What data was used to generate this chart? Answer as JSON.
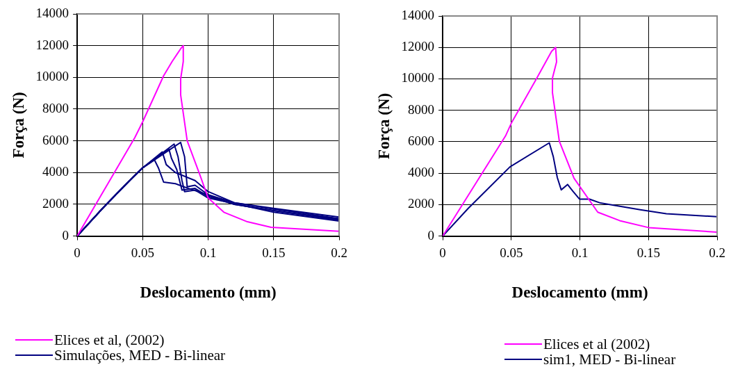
{
  "chart_data": [
    {
      "type": "line",
      "xlabel": "Deslocamento (mm)",
      "ylabel": "Força (N)",
      "xlim": [
        0,
        0.2
      ],
      "xticks": [
        0,
        0.05,
        0.1,
        0.15,
        0.2
      ],
      "ylim": [
        0,
        14000
      ],
      "yticks": [
        0,
        2000,
        4000,
        6000,
        8000,
        10000,
        12000,
        14000
      ],
      "grid": true,
      "legend": "bottom",
      "marker": "none",
      "line_style": "solid",
      "series": [
        {
          "name": "Elices et al, (2002)",
          "color": "#ff00ff",
          "x": [
            0,
            0.044,
            0.05,
            0.066,
            0.0725,
            0.079,
            0.081,
            0.081,
            0.079,
            0.079,
            0.084,
            0.0935,
            0.1,
            0.112,
            0.13,
            0.148,
            0.2
          ],
          "values": [
            0,
            6200,
            7200,
            10100,
            11000,
            11800,
            12000,
            11000,
            9900,
            8900,
            6000,
            3900,
            2400,
            1500,
            900,
            550,
            300
          ]
        },
        {
          "name": "Simulações, MED - Bi-linear",
          "color": "#000080",
          "x": [
            0,
            0.02,
            0.04,
            0.05,
            0.059,
            0.062,
            0.066,
            0.075,
            0.085,
            0.1,
            0.12,
            0.15,
            0.2
          ],
          "values": [
            0,
            1800,
            3500,
            4300,
            4800,
            4300,
            3400,
            3300,
            3000,
            2600,
            2100,
            1750,
            1200
          ]
        },
        {
          "color": "#000080",
          "x": [
            0,
            0.02,
            0.04,
            0.05,
            0.065,
            0.068,
            0.075,
            0.09,
            0.1,
            0.12,
            0.15,
            0.2
          ],
          "values": [
            0,
            1800,
            3500,
            4300,
            5300,
            4500,
            4000,
            3500,
            2800,
            2100,
            1700,
            1100
          ]
        },
        {
          "color": "#000080",
          "x": [
            0,
            0.02,
            0.04,
            0.05,
            0.07,
            0.072,
            0.076,
            0.08,
            0.09,
            0.1,
            0.12,
            0.15,
            0.2
          ],
          "values": [
            0,
            1800,
            3500,
            4300,
            5500,
            4900,
            4200,
            2900,
            3000,
            2500,
            2000,
            1600,
            1000
          ]
        },
        {
          "color": "#000080",
          "x": [
            0,
            0.02,
            0.04,
            0.05,
            0.074,
            0.077,
            0.08,
            0.082,
            0.09,
            0.1,
            0.15,
            0.2
          ],
          "values": [
            0,
            1800,
            3500,
            4300,
            5800,
            5000,
            3500,
            2800,
            2900,
            2400,
            1500,
            950
          ]
        },
        {
          "color": "#000080",
          "x": [
            0,
            0.02,
            0.04,
            0.05,
            0.079,
            0.082,
            0.084,
            0.09,
            0.1,
            0.12,
            0.15,
            0.2
          ],
          "values": [
            0,
            1800,
            3500,
            4300,
            5900,
            5000,
            3100,
            3200,
            2600,
            2000,
            1600,
            1050
          ]
        }
      ]
    },
    {
      "type": "line",
      "xlabel": "Deslocamento (mm)",
      "ylabel": "Força (N)",
      "xlim": [
        0,
        0.2
      ],
      "xticks": [
        0,
        0.05,
        0.1,
        0.15,
        0.2
      ],
      "ylim": [
        0,
        14000
      ],
      "yticks": [
        0,
        2000,
        4000,
        6000,
        8000,
        10000,
        12000,
        14000
      ],
      "grid": true,
      "legend": "bottom",
      "marker": "none",
      "line_style": "solid",
      "series": [
        {
          "name": "Elices et al (2002)",
          "color": "#ff00ff",
          "x": [
            0,
            0.0458,
            0.0504,
            0.068,
            0.0794,
            0.0823,
            0.083,
            0.08,
            0.08,
            0.085,
            0.0957,
            0.113,
            0.129,
            0.15,
            0.2
          ],
          "values": [
            0,
            6370,
            7250,
            9950,
            11760,
            12000,
            11080,
            10050,
            9120,
            6030,
            3680,
            1520,
            980,
            540,
            250
          ]
        },
        {
          "name": "sim1, MED - Bi-linear",
          "color": "#000080",
          "x": [
            0,
            0.0186,
            0.049,
            0.0777,
            0.0806,
            0.0835,
            0.0864,
            0.091,
            0.095,
            0.0997,
            0.107,
            0.115,
            0.144,
            0.163,
            0.2
          ],
          "values": [
            0,
            1760,
            4400,
            5930,
            5050,
            3730,
            2940,
            3280,
            2840,
            2350,
            2350,
            2100,
            1670,
            1420,
            1230
          ]
        }
      ]
    }
  ]
}
